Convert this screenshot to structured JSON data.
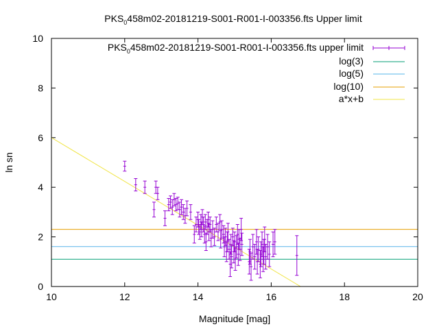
{
  "chart_data": {
    "type": "scatter",
    "title": {
      "prefix": "PKS",
      "sub": "0",
      "suffix": "458m02-20181219-S001-R001-I-003356.fts Upper limit"
    },
    "xlabel": "Magnitude [mag]",
    "ylabel": "ln sn",
    "xlim": [
      10,
      20
    ],
    "ylim": [
      0,
      10
    ],
    "xticks": [
      "10",
      "12",
      "14",
      "16",
      "18",
      "20"
    ],
    "yticks": [
      "0",
      "2",
      "4",
      "6",
      "8",
      "10"
    ],
    "legend_position": "top-right",
    "legend": [
      {
        "prefix": "PKS",
        "sub": "0",
        "suffix": "458m02-20181219-S001-R001-I-003356.fts upper limit",
        "kind": "errorbar",
        "color": "#9400d3"
      },
      {
        "label": "log(3)",
        "kind": "line",
        "color": "#009e73"
      },
      {
        "label": "log(5)",
        "kind": "line",
        "color": "#56b4e9"
      },
      {
        "label": "log(10)",
        "kind": "line",
        "color": "#e69f00"
      },
      {
        "label": "a*x+b",
        "kind": "line",
        "color": "#f0e442"
      }
    ],
    "hlines": [
      {
        "name": "log(3)",
        "y": 1.0986,
        "color": "#009e73"
      },
      {
        "name": "log(5)",
        "y": 1.6094,
        "color": "#56b4e9"
      },
      {
        "name": "log(10)",
        "y": 2.3026,
        "color": "#e69f00"
      }
    ],
    "fit_line": {
      "name": "a*x+b",
      "x": [
        10,
        16.8
      ],
      "y": [
        6.0,
        0.0
      ],
      "color": "#f0e442"
    },
    "points": [
      {
        "x": 12.0,
        "y": 4.85,
        "e": 0.2
      },
      {
        "x": 12.3,
        "y": 4.1,
        "e": 0.25
      },
      {
        "x": 12.55,
        "y": 4.0,
        "e": 0.25
      },
      {
        "x": 12.8,
        "y": 3.1,
        "e": 0.3
      },
      {
        "x": 12.85,
        "y": 4.0,
        "e": 0.25
      },
      {
        "x": 12.9,
        "y": 3.75,
        "e": 0.25
      },
      {
        "x": 13.1,
        "y": 2.75,
        "e": 0.3
      },
      {
        "x": 13.2,
        "y": 3.3,
        "e": 0.25
      },
      {
        "x": 13.25,
        "y": 3.4,
        "e": 0.25
      },
      {
        "x": 13.3,
        "y": 3.2,
        "e": 0.3
      },
      {
        "x": 13.35,
        "y": 3.5,
        "e": 0.25
      },
      {
        "x": 13.4,
        "y": 3.3,
        "e": 0.25
      },
      {
        "x": 13.45,
        "y": 3.35,
        "e": 0.25
      },
      {
        "x": 13.5,
        "y": 3.1,
        "e": 0.3
      },
      {
        "x": 13.55,
        "y": 3.2,
        "e": 0.3
      },
      {
        "x": 13.6,
        "y": 3.0,
        "e": 0.3
      },
      {
        "x": 13.65,
        "y": 2.85,
        "e": 0.3
      },
      {
        "x": 13.7,
        "y": 3.15,
        "e": 0.3
      },
      {
        "x": 13.8,
        "y": 3.0,
        "e": 0.3
      },
      {
        "x": 13.9,
        "y": 2.1,
        "e": 0.35
      },
      {
        "x": 13.95,
        "y": 2.5,
        "e": 0.3
      },
      {
        "x": 14.0,
        "y": 2.7,
        "e": 0.3
      },
      {
        "x": 14.02,
        "y": 2.4,
        "e": 0.3
      },
      {
        "x": 14.05,
        "y": 2.2,
        "e": 0.3
      },
      {
        "x": 14.08,
        "y": 2.6,
        "e": 0.3
      },
      {
        "x": 14.1,
        "y": 2.3,
        "e": 0.3
      },
      {
        "x": 14.12,
        "y": 2.8,
        "e": 0.3
      },
      {
        "x": 14.15,
        "y": 2.5,
        "e": 0.3
      },
      {
        "x": 14.18,
        "y": 2.1,
        "e": 0.35
      },
      {
        "x": 14.2,
        "y": 2.6,
        "e": 0.3
      },
      {
        "x": 14.22,
        "y": 1.8,
        "e": 0.35
      },
      {
        "x": 14.25,
        "y": 2.4,
        "e": 0.3
      },
      {
        "x": 14.28,
        "y": 2.7,
        "e": 0.3
      },
      {
        "x": 14.3,
        "y": 2.2,
        "e": 0.35
      },
      {
        "x": 14.33,
        "y": 2.5,
        "e": 0.3
      },
      {
        "x": 14.36,
        "y": 1.95,
        "e": 0.35
      },
      {
        "x": 14.4,
        "y": 2.3,
        "e": 0.35
      },
      {
        "x": 14.45,
        "y": 2.0,
        "e": 0.35
      },
      {
        "x": 14.5,
        "y": 2.5,
        "e": 0.3
      },
      {
        "x": 14.55,
        "y": 2.2,
        "e": 0.35
      },
      {
        "x": 14.6,
        "y": 2.6,
        "e": 0.3
      },
      {
        "x": 14.62,
        "y": 1.9,
        "e": 0.35
      },
      {
        "x": 14.65,
        "y": 2.3,
        "e": 0.35
      },
      {
        "x": 14.7,
        "y": 2.1,
        "e": 0.35
      },
      {
        "x": 14.72,
        "y": 1.6,
        "e": 0.4
      },
      {
        "x": 14.75,
        "y": 2.0,
        "e": 0.35
      },
      {
        "x": 14.78,
        "y": 1.4,
        "e": 0.4
      },
      {
        "x": 14.8,
        "y": 1.8,
        "e": 0.4
      },
      {
        "x": 14.82,
        "y": 2.2,
        "e": 0.35
      },
      {
        "x": 14.85,
        "y": 1.5,
        "e": 0.4
      },
      {
        "x": 14.88,
        "y": 0.9,
        "e": 0.5
      },
      {
        "x": 14.9,
        "y": 1.7,
        "e": 0.4
      },
      {
        "x": 14.92,
        "y": 1.2,
        "e": 0.45
      },
      {
        "x": 14.95,
        "y": 2.0,
        "e": 0.35
      },
      {
        "x": 14.98,
        "y": 1.4,
        "e": 0.45
      },
      {
        "x": 15.0,
        "y": 1.8,
        "e": 0.4
      },
      {
        "x": 15.02,
        "y": 1.1,
        "e": 0.45
      },
      {
        "x": 15.05,
        "y": 1.6,
        "e": 0.45
      },
      {
        "x": 15.08,
        "y": 2.1,
        "e": 0.4
      },
      {
        "x": 15.1,
        "y": 1.3,
        "e": 0.45
      },
      {
        "x": 15.12,
        "y": 1.9,
        "e": 0.4
      },
      {
        "x": 15.15,
        "y": 1.5,
        "e": 0.45
      },
      {
        "x": 15.18,
        "y": 2.3,
        "e": 0.45
      },
      {
        "x": 15.2,
        "y": 1.7,
        "e": 0.45
      },
      {
        "x": 15.4,
        "y": 1.0,
        "e": 0.5
      },
      {
        "x": 15.42,
        "y": 1.4,
        "e": 0.5
      },
      {
        "x": 15.45,
        "y": 0.8,
        "e": 0.55
      },
      {
        "x": 15.5,
        "y": 1.6,
        "e": 0.5
      },
      {
        "x": 15.55,
        "y": 1.2,
        "e": 0.5
      },
      {
        "x": 15.6,
        "y": 1.8,
        "e": 0.5
      },
      {
        "x": 15.62,
        "y": 1.0,
        "e": 0.5
      },
      {
        "x": 15.65,
        "y": 1.5,
        "e": 0.5
      },
      {
        "x": 15.7,
        "y": 0.9,
        "e": 0.55
      },
      {
        "x": 15.72,
        "y": 1.3,
        "e": 0.5
      },
      {
        "x": 15.75,
        "y": 1.7,
        "e": 0.5
      },
      {
        "x": 15.78,
        "y": 1.1,
        "e": 0.5
      },
      {
        "x": 15.8,
        "y": 1.4,
        "e": 0.5
      },
      {
        "x": 15.82,
        "y": 1.9,
        "e": 0.5
      },
      {
        "x": 15.85,
        "y": 1.2,
        "e": 0.5
      },
      {
        "x": 15.9,
        "y": 1.6,
        "e": 0.5
      },
      {
        "x": 15.95,
        "y": 1.3,
        "e": 0.5
      },
      {
        "x": 16.05,
        "y": 1.7,
        "e": 0.5
      },
      {
        "x": 16.1,
        "y": 1.8,
        "e": 0.5
      },
      {
        "x": 16.7,
        "y": 1.25,
        "e": 0.8
      }
    ]
  }
}
